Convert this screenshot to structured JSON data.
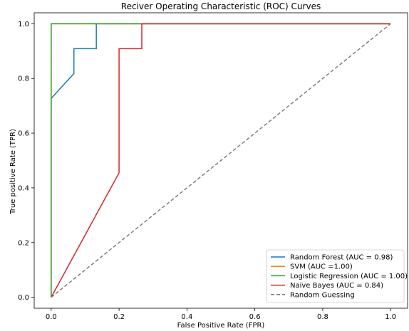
{
  "chart_data": {
    "type": "line",
    "title": "Reciver Operating Characteristic (ROC) Curves",
    "xlabel": "False Positive Rate (FPR)",
    "ylabel": "True positive Rate (TPR)",
    "xlim": [
      -0.05,
      1.05
    ],
    "ylim": [
      -0.04,
      1.04
    ],
    "xticks": [
      0.0,
      0.2,
      0.4,
      0.6,
      0.8,
      1.0
    ],
    "yticks": [
      0.0,
      0.2,
      0.4,
      0.6,
      0.8,
      1.0
    ],
    "xtick_labels": [
      "0.0",
      "0.2",
      "0.4",
      "0.6",
      "0.8",
      "1.0"
    ],
    "ytick_labels": [
      "0.0",
      "0.2",
      "0.4",
      "0.6",
      "0.8",
      "1.0"
    ],
    "grid": false,
    "legend_position": "bottom-right",
    "series": [
      {
        "name": "Random Forest (AUC = 0.98)",
        "color": "#1f77b4",
        "style": "solid",
        "x": [
          0,
          0,
          0.067,
          0.067,
          0.133,
          0.133,
          1.0
        ],
        "y": [
          0,
          0.727,
          0.818,
          0.909,
          0.909,
          1.0,
          1.0
        ]
      },
      {
        "name": "SVM (AUC =1.00)",
        "color": "#ff7f0e",
        "style": "solid",
        "x": [
          0,
          0,
          1.0
        ],
        "y": [
          0,
          1.0,
          1.0
        ]
      },
      {
        "name": "Logistic Regression (AUC = 1.00)",
        "color": "#2ca02c",
        "style": "solid",
        "x": [
          0,
          0,
          1.0
        ],
        "y": [
          0,
          1.0,
          1.0
        ]
      },
      {
        "name": "Naive Bayes (AUC = 0.84)",
        "color": "#d62728",
        "style": "solid",
        "x": [
          0,
          0.2,
          0.2,
          0.267,
          0.267,
          1.0
        ],
        "y": [
          0,
          0.455,
          0.909,
          0.909,
          1.0,
          1.0
        ]
      },
      {
        "name": "Random Guessing",
        "color": "#7f7f7f",
        "style": "dashed",
        "x": [
          0,
          1.0
        ],
        "y": [
          0,
          1.0
        ]
      }
    ]
  }
}
